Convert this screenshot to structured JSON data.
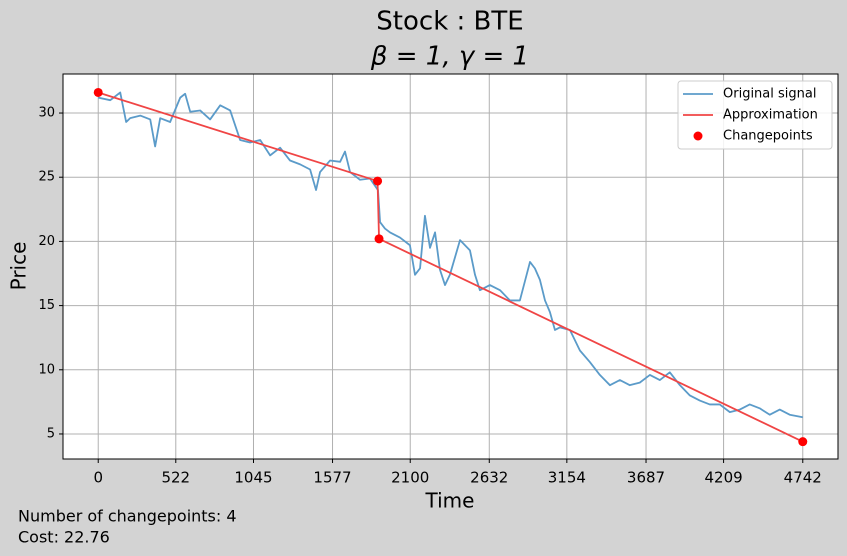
{
  "chart_data": {
    "type": "line",
    "title": "Stock : BTE",
    "subtitle": "β = 1, γ = 1",
    "x_label": "Time",
    "y_label": "Price",
    "xlim": [
      -237.1,
      4979.1
    ],
    "ylim": [
      3.05,
      33.04
    ],
    "xticks": [
      0,
      522,
      1045,
      1577,
      2100,
      2632,
      3154,
      3687,
      4209,
      4742
    ],
    "yticks": [
      5,
      10,
      15,
      20,
      25,
      30
    ],
    "grid": true,
    "legend": "upper right",
    "series": [
      {
        "name": "Original signal",
        "type": "line",
        "color": "#5b9bc9",
        "x": [
          0,
          81,
          148,
          188,
          215,
          283,
          350,
          383,
          417,
          484,
          552,
          585,
          619,
          686,
          753,
          821,
          888,
          955,
          1022,
          1090,
          1157,
          1224,
          1291,
          1359,
          1426,
          1466,
          1493,
          1560,
          1628,
          1661,
          1695,
          1762,
          1829,
          1883,
          1897,
          1930,
          1964,
          2031,
          2098,
          2132,
          2166,
          2199,
          2233,
          2267,
          2300,
          2334,
          2367,
          2435,
          2502,
          2536,
          2569,
          2636,
          2704,
          2771,
          2838,
          2906,
          2939,
          2973,
          3007,
          3040,
          3074,
          3107,
          3175,
          3242,
          3309,
          3376,
          3444,
          3511,
          3578,
          3645,
          3713,
          3780,
          3847,
          3915,
          3982,
          4049,
          4116,
          4183,
          4251,
          4318,
          4385,
          4452,
          4520,
          4587,
          4654,
          4742
        ],
        "values": [
          31.2,
          31.0,
          31.6,
          29.3,
          29.6,
          29.8,
          29.5,
          27.4,
          29.6,
          29.3,
          31.2,
          31.5,
          30.1,
          30.2,
          29.5,
          30.6,
          30.2,
          27.9,
          27.7,
          27.9,
          26.7,
          27.3,
          26.3,
          26.0,
          25.6,
          24.0,
          25.4,
          26.3,
          26.2,
          27.0,
          25.4,
          24.8,
          24.9,
          24.0,
          21.5,
          21.0,
          20.7,
          20.3,
          19.7,
          17.4,
          17.9,
          22.0,
          19.5,
          20.7,
          17.8,
          16.6,
          17.4,
          20.1,
          19.3,
          17.4,
          16.2,
          16.6,
          16.2,
          15.4,
          15.4,
          18.4,
          17.9,
          17.0,
          15.4,
          14.5,
          13.1,
          13.3,
          13.1,
          11.5,
          10.6,
          9.6,
          8.8,
          9.2,
          8.8,
          9.0,
          9.6,
          9.2,
          9.8,
          8.8,
          8.0,
          7.6,
          7.3,
          7.3,
          6.7,
          6.9,
          7.3,
          7.0,
          6.5,
          6.9,
          6.5,
          6.3
        ]
      },
      {
        "name": "Approximation",
        "type": "line",
        "color": "#f04545",
        "x": [
          0,
          1880,
          1890,
          4742
        ],
        "values": [
          31.6,
          24.7,
          20.2,
          4.4
        ]
      },
      {
        "name": "Changepoints",
        "type": "scatter",
        "color": "#ff0000",
        "x": [
          0,
          1880,
          1890,
          4742
        ],
        "values": [
          31.6,
          24.7,
          20.2,
          4.4
        ]
      }
    ],
    "annotations": [
      "Number of changepoints: 4",
      "Cost: 22.76"
    ]
  }
}
